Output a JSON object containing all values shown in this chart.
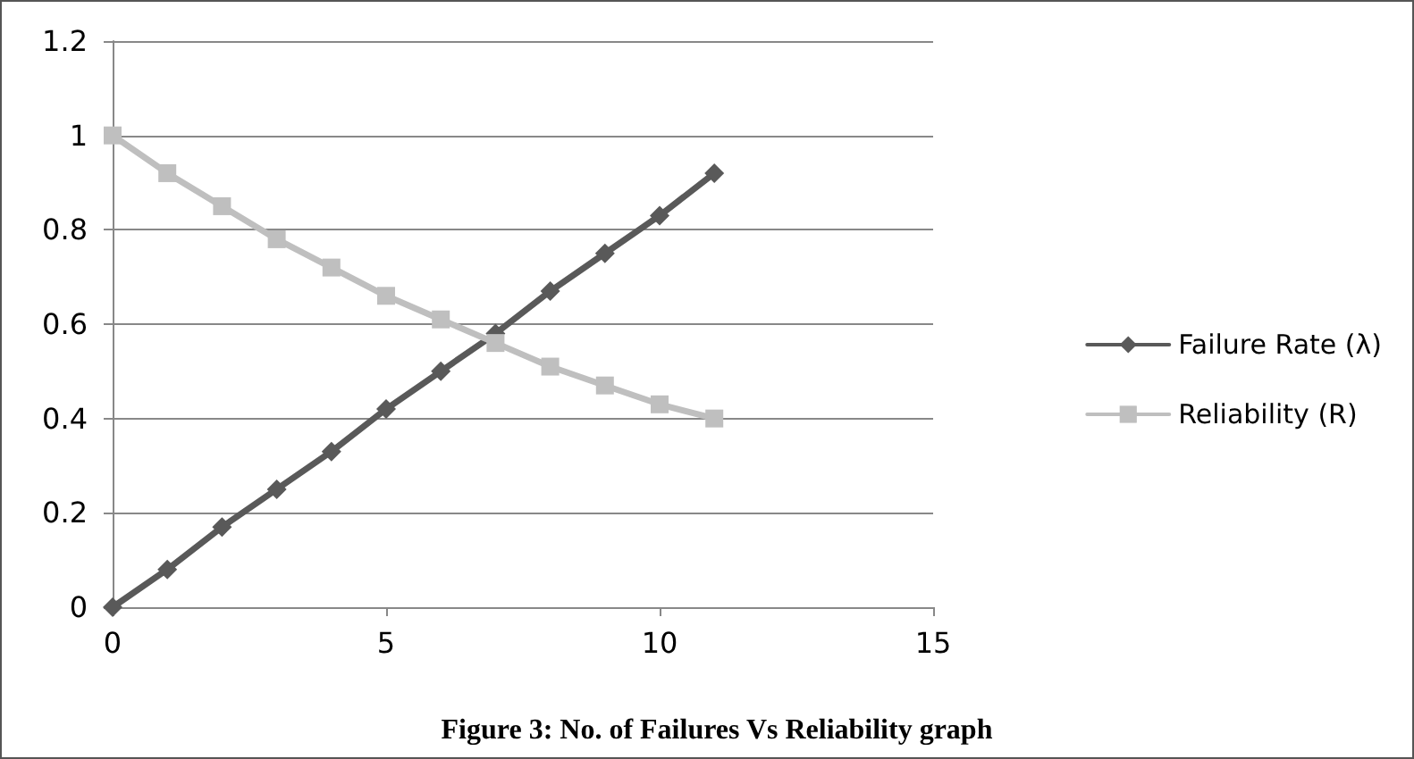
{
  "chart_data": {
    "type": "line",
    "title": "Figure 3: No. of Failures Vs Reliability graph",
    "x": [
      0,
      1,
      2,
      3,
      4,
      5,
      6,
      7,
      8,
      9,
      10,
      11
    ],
    "series": [
      {
        "name": "Failure Rate (λ)",
        "color": "#595959",
        "marker": "diamond",
        "values": [
          0,
          0.08,
          0.17,
          0.25,
          0.33,
          0.42,
          0.5,
          0.58,
          0.67,
          0.75,
          0.83,
          0.92
        ]
      },
      {
        "name": "Reliability (R)",
        "color": "#bfbfbf",
        "marker": "square",
        "values": [
          1,
          0.92,
          0.85,
          0.78,
          0.72,
          0.66,
          0.61,
          0.56,
          0.51,
          0.47,
          0.43,
          0.4
        ]
      }
    ],
    "xlim": [
      0,
      15
    ],
    "xticks": [
      0,
      5,
      10,
      15
    ],
    "ylim": [
      0,
      1.2
    ],
    "yticks": [
      0,
      0.2,
      0.4,
      0.6,
      0.8,
      1,
      1.2
    ],
    "grid": "y",
    "legend": "right",
    "line_style": "solid"
  }
}
